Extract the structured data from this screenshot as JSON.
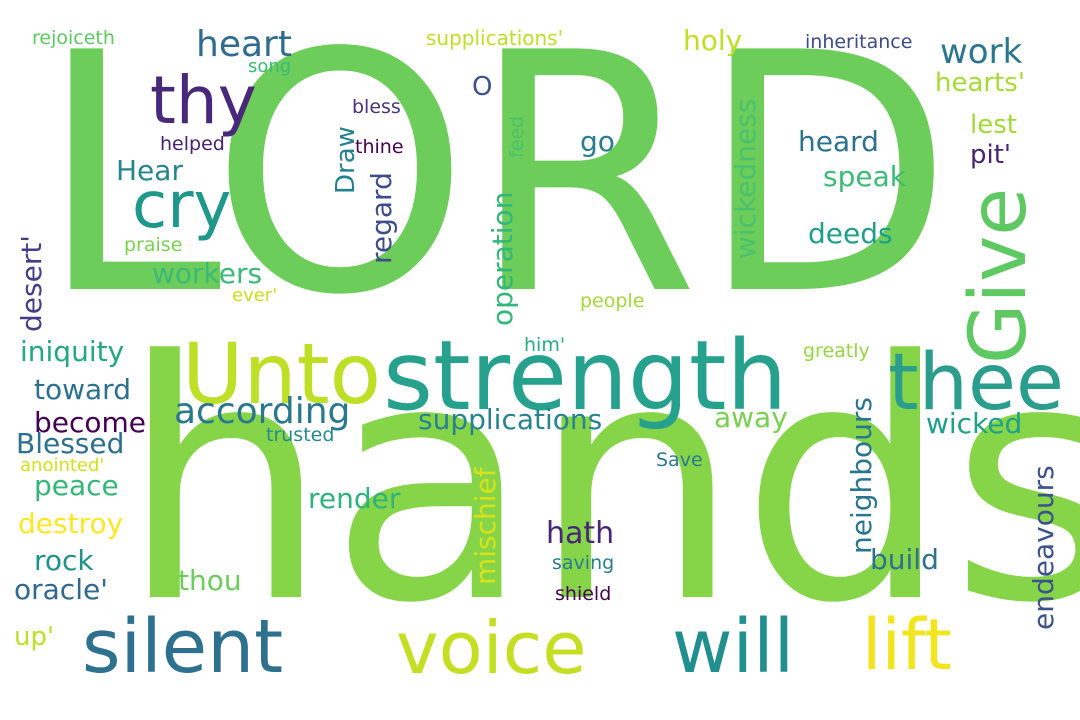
{
  "background": "#ffffff",
  "words": [
    {
      "text": "LORD",
      "color": "#6ccd5a"
    },
    {
      "text": "hands",
      "color": "#86d549"
    },
    {
      "text": "strength",
      "color": "#25a18e"
    },
    {
      "text": "Unto",
      "color": "#bddf26"
    },
    {
      "text": "thee",
      "color": "#2a9d8d"
    },
    {
      "text": "Give",
      "color": "#5ec962"
    },
    {
      "text": "silent",
      "color": "#2d718e"
    },
    {
      "text": "voice",
      "color": "#c2df23"
    },
    {
      "text": "will",
      "color": "#218f8d"
    },
    {
      "text": "lift",
      "color": "#f2e51d"
    },
    {
      "text": "thy",
      "color": "#482878"
    },
    {
      "text": "cry",
      "color": "#1f978b"
    },
    {
      "text": "according",
      "color": "#2a788e"
    },
    {
      "text": "heart",
      "color": "#2f6b8e"
    },
    {
      "text": "work",
      "color": "#2a768e"
    },
    {
      "text": "supplications",
      "color": "#26838f"
    },
    {
      "text": "rejoiceth",
      "color": "#5ec962"
    },
    {
      "text": "supplications'",
      "color": "#bddf26"
    },
    {
      "text": "inheritance",
      "color": "#3e4989"
    },
    {
      "text": "song",
      "color": "#3bbb75"
    },
    {
      "text": "holy",
      "color": "#bddf26"
    },
    {
      "text": "hearts'",
      "color": "#a5db36"
    },
    {
      "text": "O",
      "color": "#3b528b"
    },
    {
      "text": "bless",
      "color": "#46327e"
    },
    {
      "text": "helped",
      "color": "#482173"
    },
    {
      "text": "thine",
      "color": "#440154"
    },
    {
      "text": "feed",
      "color": "#4ac16d"
    },
    {
      "text": "go",
      "color": "#277f8e"
    },
    {
      "text": "heard",
      "color": "#2c728e"
    },
    {
      "text": "lest",
      "color": "#a0da39"
    },
    {
      "text": "pit'",
      "color": "#482475"
    },
    {
      "text": "Hear",
      "color": "#24868e"
    },
    {
      "text": "speak",
      "color": "#3bbb75"
    },
    {
      "text": "deeds",
      "color": "#1f9e89"
    },
    {
      "text": "Draw",
      "color": "#27808e"
    },
    {
      "text": "regard",
      "color": "#3e4c8a"
    },
    {
      "text": "operation",
      "color": "#32b67a"
    },
    {
      "text": "wickedness",
      "color": "#4ac16d"
    },
    {
      "text": "praise",
      "color": "#7ad151"
    },
    {
      "text": "workers",
      "color": "#3aba76"
    },
    {
      "text": "desert'",
      "color": "#433e85"
    },
    {
      "text": "ever'",
      "color": "#c8e020"
    },
    {
      "text": "people",
      "color": "#a0da39"
    },
    {
      "text": "iniquity",
      "color": "#22a884"
    },
    {
      "text": "him'",
      "color": "#26ad81"
    },
    {
      "text": "greatly",
      "color": "#93d741"
    },
    {
      "text": "toward",
      "color": "#2c728e"
    },
    {
      "text": "away",
      "color": "#7ad151"
    },
    {
      "text": "become",
      "color": "#440154"
    },
    {
      "text": "Blessed",
      "color": "#2d708e"
    },
    {
      "text": "trusted",
      "color": "#23898e"
    },
    {
      "text": "wicked",
      "color": "#1fa088"
    },
    {
      "text": "anointed'",
      "color": "#d0e11c"
    },
    {
      "text": "Save",
      "color": "#2a788e"
    },
    {
      "text": "peace",
      "color": "#35b779"
    },
    {
      "text": "neighbours",
      "color": "#2a768e"
    },
    {
      "text": "endeavours",
      "color": "#3b528b"
    },
    {
      "text": "render",
      "color": "#2eb37c"
    },
    {
      "text": "destroy",
      "color": "#fde725"
    },
    {
      "text": "mischief",
      "color": "#d8e219"
    },
    {
      "text": "hath",
      "color": "#482677"
    },
    {
      "text": "build",
      "color": "#2c728e"
    },
    {
      "text": "rock",
      "color": "#20928c"
    },
    {
      "text": "saving",
      "color": "#287d8e"
    },
    {
      "text": "thou",
      "color": "#6ccd5a"
    },
    {
      "text": "oracle'",
      "color": "#31688e"
    },
    {
      "text": "shield",
      "color": "#440154"
    },
    {
      "text": "up'",
      "color": "#bddf26"
    }
  ]
}
